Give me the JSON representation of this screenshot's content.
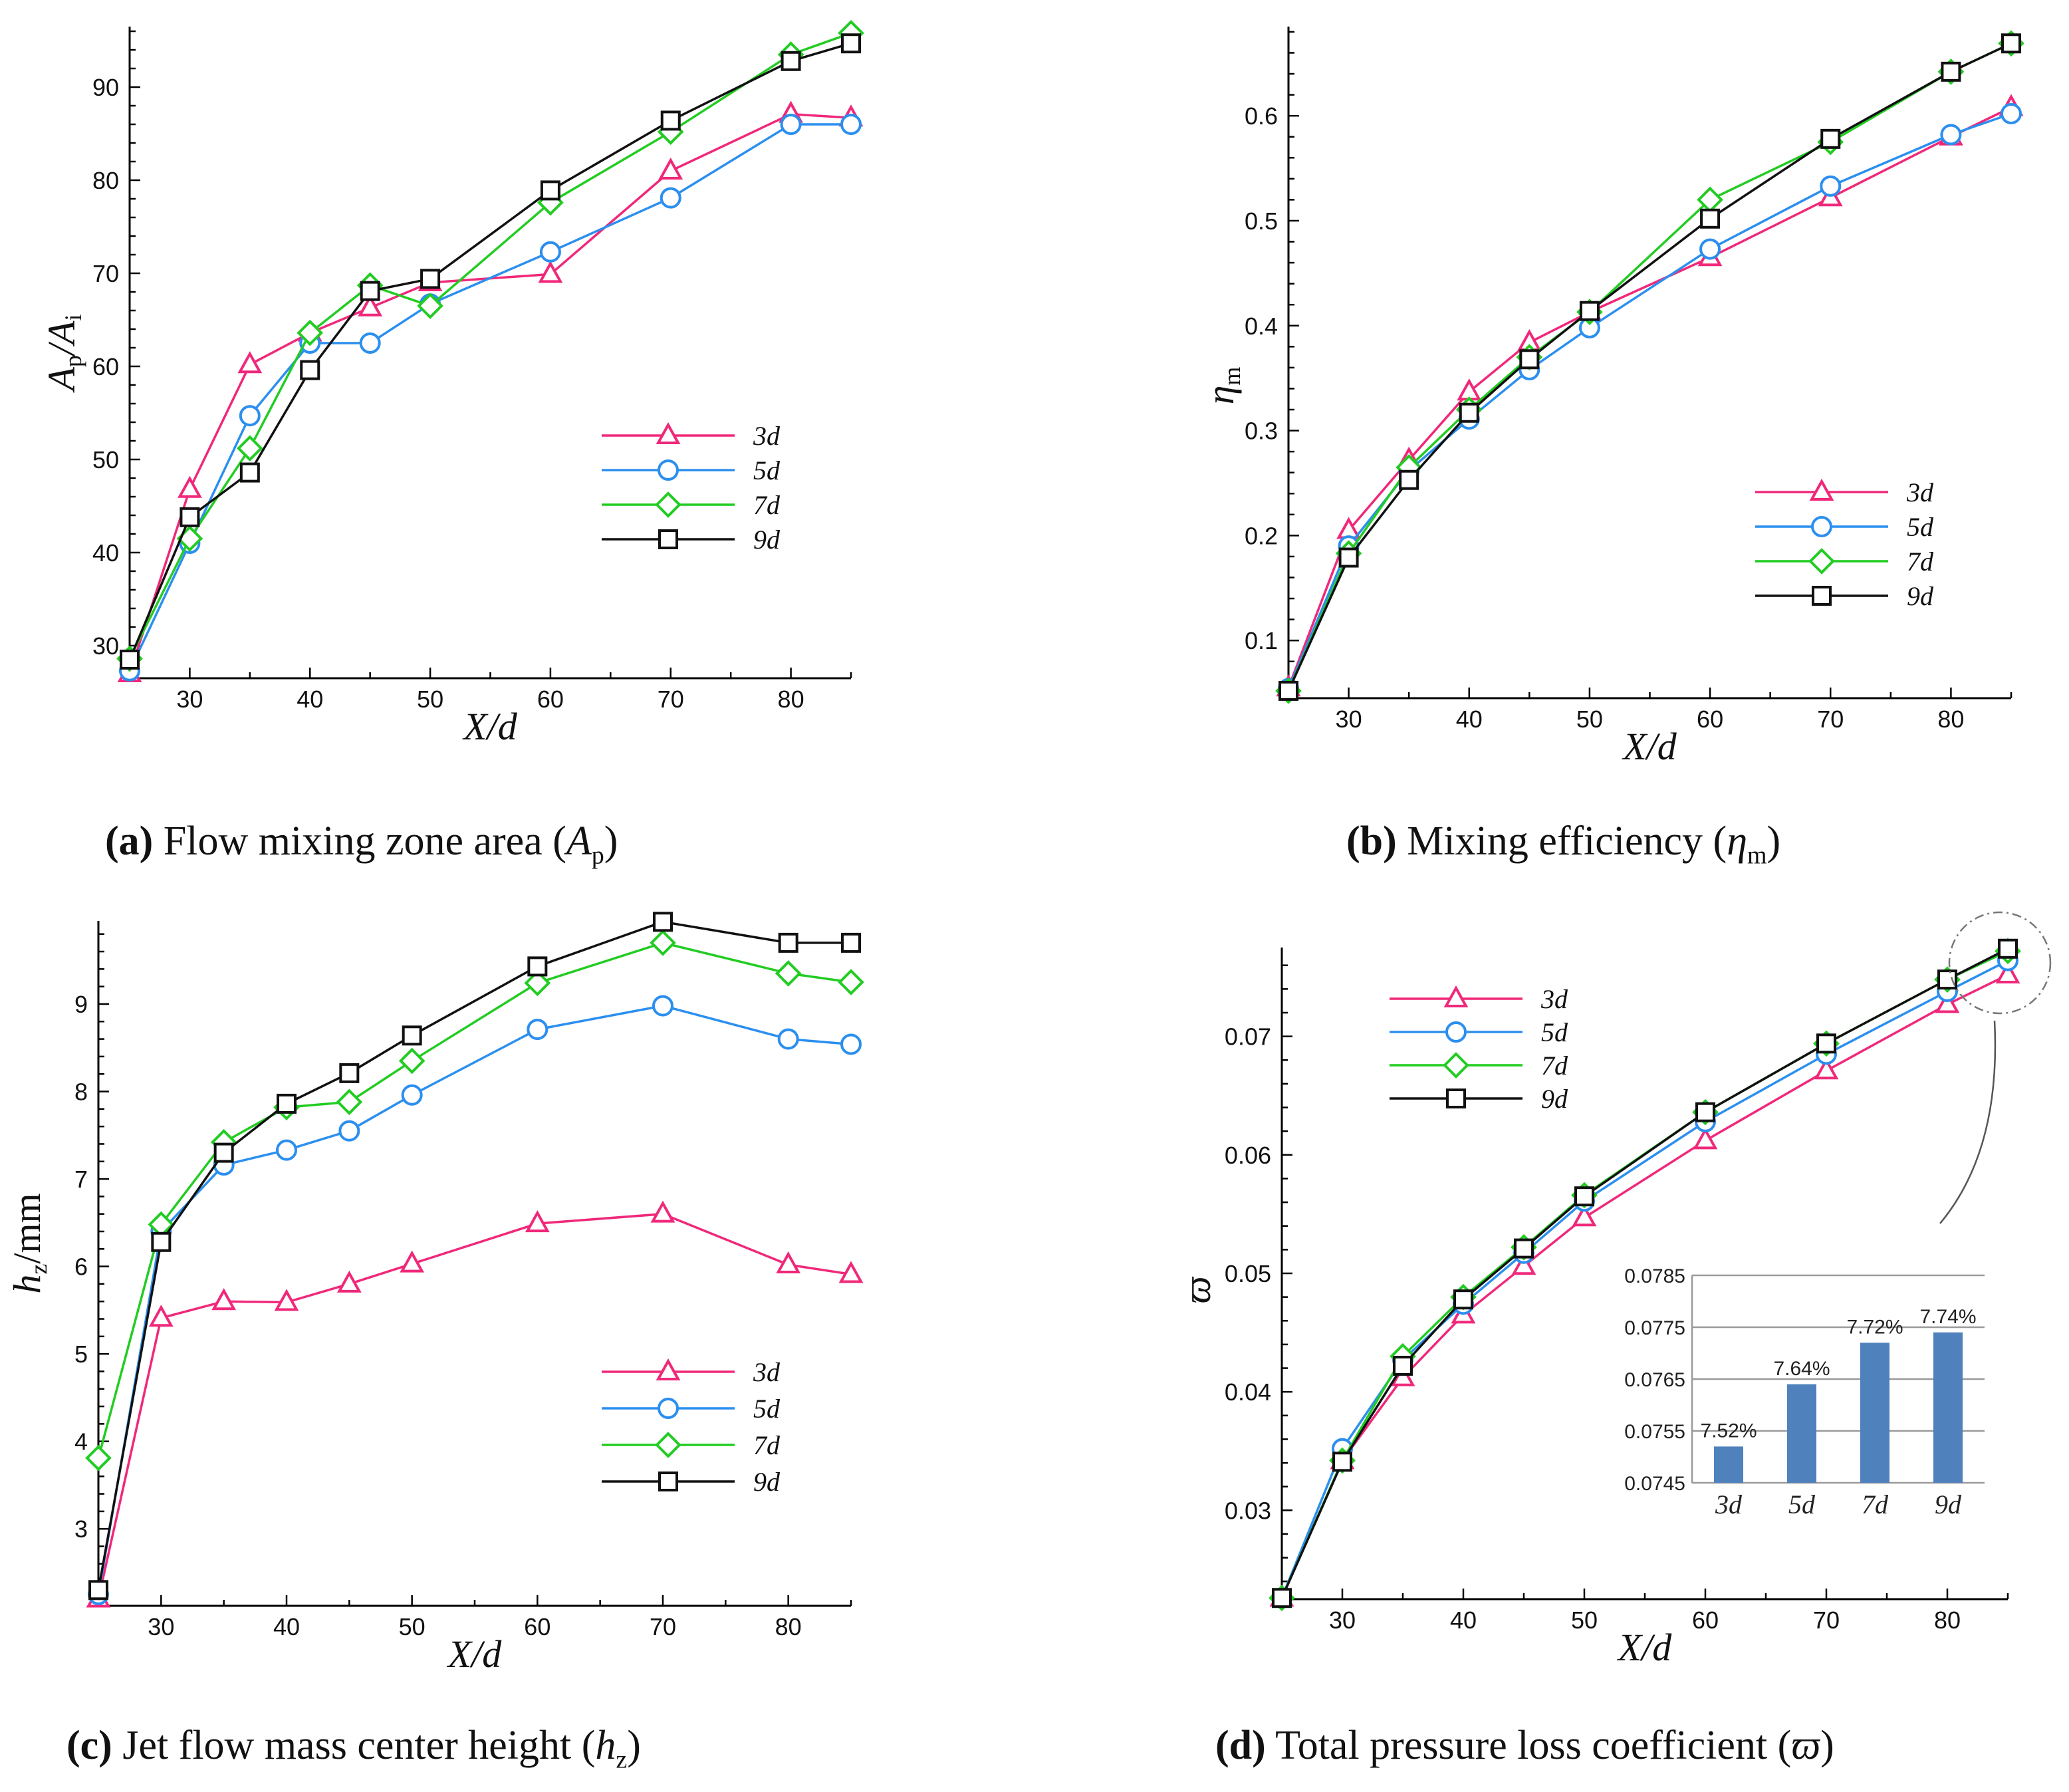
{
  "series_style": [
    {
      "key": "3d",
      "color": "#f0287a",
      "marker": "triangle"
    },
    {
      "key": "5d",
      "color": "#2b8fef",
      "marker": "circle"
    },
    {
      "key": "7d",
      "color": "#22cc22",
      "marker": "diamond"
    },
    {
      "key": "9d",
      "color": "#111111",
      "marker": "square"
    }
  ],
  "captions": {
    "a": {
      "letter": "(a)",
      "text": " Flow mixing zone area (",
      "sym": "A",
      "sub": "p",
      "end": ")"
    },
    "b": {
      "letter": "(b)",
      "text": " Mixing efficiency (",
      "sym": "η",
      "sub": "m",
      "end": ")"
    },
    "c": {
      "letter": "(c)",
      "text": " Jet flow mass center height (",
      "sym": "h",
      "sub": "z",
      "end": ")"
    },
    "d": {
      "letter": "(d)",
      "text": " Total pressure loss coefficient (",
      "sym": "ϖ",
      "sub": "",
      "end": ")"
    }
  },
  "chart_data": [
    {
      "id": "a",
      "type": "line",
      "title": "Flow mixing zone area (Ap)",
      "xlabel": "X/d",
      "ylabel_main": "A",
      "ylabel_sub1": "p",
      "ylabel_mid": "/A",
      "ylabel_sub2": "i",
      "xlim": [
        25,
        85
      ],
      "ylim": [
        26.5,
        96.5
      ],
      "xticks": [
        30,
        40,
        50,
        60,
        70,
        80
      ],
      "yticks": [
        30,
        40,
        50,
        60,
        70,
        80,
        90
      ],
      "legend_position": "center-right",
      "x": [
        25,
        30,
        35,
        40,
        45,
        50,
        60,
        70,
        80,
        85
      ],
      "series": [
        {
          "name": "3d",
          "values": [
            27.0,
            46.8,
            60.2,
            63.6,
            66.3,
            69.0,
            69.9,
            81.0,
            87.1,
            86.7
          ]
        },
        {
          "name": "5d",
          "values": [
            27.3,
            41.0,
            54.7,
            62.5,
            62.5,
            66.7,
            72.3,
            78.1,
            86.0,
            86.0
          ]
        },
        {
          "name": "7d",
          "values": [
            28.6,
            41.5,
            51.2,
            63.6,
            68.7,
            66.5,
            77.6,
            85.2,
            93.5,
            95.8
          ]
        },
        {
          "name": "9d",
          "values": [
            28.5,
            43.8,
            48.6,
            59.6,
            68.1,
            69.4,
            78.9,
            86.4,
            92.8,
            94.7
          ]
        }
      ]
    },
    {
      "id": "b",
      "type": "line",
      "title": "Mixing efficiency (ηm)",
      "xlabel": "X/d",
      "ylabel_main": "η",
      "ylabel_sub1": "m",
      "ylabel_mid": "",
      "ylabel_sub2": "",
      "xlim": [
        25,
        85
      ],
      "ylim": [
        0.045,
        0.685
      ],
      "xticks": [
        30,
        40,
        50,
        60,
        70,
        80
      ],
      "yticks": [
        0.1,
        0.2,
        0.3,
        0.4,
        0.5,
        0.6
      ],
      "legend_position": "lower-right",
      "x": [
        25,
        30,
        35,
        40,
        45,
        50,
        60,
        70,
        80,
        85
      ],
      "series": [
        {
          "name": "3d",
          "values": [
            0.055,
            0.205,
            0.272,
            0.337,
            0.384,
            0.413,
            0.465,
            0.522,
            0.58,
            0.608
          ]
        },
        {
          "name": "5d",
          "values": [
            0.054,
            0.19,
            0.262,
            0.311,
            0.358,
            0.398,
            0.473,
            0.533,
            0.582,
            0.602
          ]
        },
        {
          "name": "7d",
          "values": [
            0.052,
            0.183,
            0.265,
            0.32,
            0.37,
            0.413,
            0.52,
            0.575,
            0.642,
            0.669
          ]
        },
        {
          "name": "9d",
          "values": [
            0.052,
            0.179,
            0.253,
            0.317,
            0.368,
            0.414,
            0.502,
            0.578,
            0.642,
            0.669
          ]
        }
      ]
    },
    {
      "id": "c",
      "type": "line",
      "title": "Jet flow mass center height (hz)",
      "xlabel": "X/d",
      "ylabel_main": "h",
      "ylabel_sub1": "z",
      "ylabel_mid": "/mm",
      "ylabel_sub2": "",
      "xlim": [
        25,
        85
      ],
      "ylim": [
        2.12,
        9.95
      ],
      "xticks": [
        30,
        40,
        50,
        60,
        70,
        80
      ],
      "yticks": [
        3,
        4,
        5,
        6,
        7,
        8,
        9
      ],
      "legend_position": "lower-right",
      "x": [
        25,
        30,
        35,
        40,
        45,
        50,
        60,
        70,
        80,
        85
      ],
      "series": [
        {
          "name": "3d",
          "values": [
            2.2,
            5.41,
            5.6,
            5.59,
            5.8,
            6.03,
            6.49,
            6.6,
            6.02,
            5.91
          ]
        },
        {
          "name": "5d",
          "values": [
            2.25,
            6.4,
            7.16,
            7.33,
            7.55,
            7.96,
            8.71,
            8.98,
            8.6,
            8.54
          ]
        },
        {
          "name": "7d",
          "values": [
            3.81,
            6.48,
            7.42,
            7.82,
            7.88,
            8.35,
            9.24,
            9.7,
            9.35,
            9.25
          ]
        },
        {
          "name": "9d",
          "values": [
            2.3,
            6.28,
            7.3,
            7.86,
            8.21,
            8.64,
            9.43,
            9.94,
            9.7,
            9.7
          ]
        }
      ]
    },
    {
      "id": "d",
      "type": "line",
      "title": "Total pressure loss coefficient (ϖ)",
      "xlabel": "X/d",
      "ylabel_main": "ϖ",
      "ylabel_sub1": "",
      "ylabel_mid": "",
      "ylabel_sub2": "",
      "xlim": [
        25,
        85
      ],
      "ylim": [
        0.0225,
        0.0775
      ],
      "xticks": [
        30,
        40,
        50,
        60,
        70,
        80
      ],
      "yticks": [
        0.03,
        0.04,
        0.05,
        0.06,
        0.07
      ],
      "legend_position": "upper-left",
      "x": [
        25,
        30,
        35,
        40,
        45,
        50,
        60,
        70,
        80,
        85
      ],
      "series": [
        {
          "name": "3d",
          "values": [
            0.0226,
            0.0342,
            0.0412,
            0.0465,
            0.0506,
            0.0547,
            0.0612,
            0.0671,
            0.0727,
            0.0752
          ]
        },
        {
          "name": "5d",
          "values": [
            0.0226,
            0.0352,
            0.0427,
            0.0474,
            0.0517,
            0.0561,
            0.0628,
            0.0685,
            0.0738,
            0.0764
          ]
        },
        {
          "name": "7d",
          "values": [
            0.0226,
            0.0342,
            0.043,
            0.048,
            0.0522,
            0.0566,
            0.0636,
            0.0694,
            0.0748,
            0.0772
          ]
        },
        {
          "name": "9d",
          "values": [
            0.0226,
            0.0341,
            0.0422,
            0.0478,
            0.0521,
            0.0565,
            0.0636,
            0.0694,
            0.0748,
            0.0774
          ]
        }
      ],
      "inset": {
        "type": "bar",
        "categories": [
          "3d",
          "5d",
          "7d",
          "9d"
        ],
        "values": [
          0.0752,
          0.0764,
          0.0772,
          0.0774
        ],
        "labels": [
          "7.52%",
          "7.64%",
          "7.72%",
          "7.74%"
        ],
        "ylim": [
          0.0745,
          0.0785
        ],
        "yticks": [
          "0.0745",
          "0.0755",
          "0.0765",
          "0.0775",
          "0.0785"
        ],
        "bar_color": "#4f81bd"
      }
    }
  ]
}
